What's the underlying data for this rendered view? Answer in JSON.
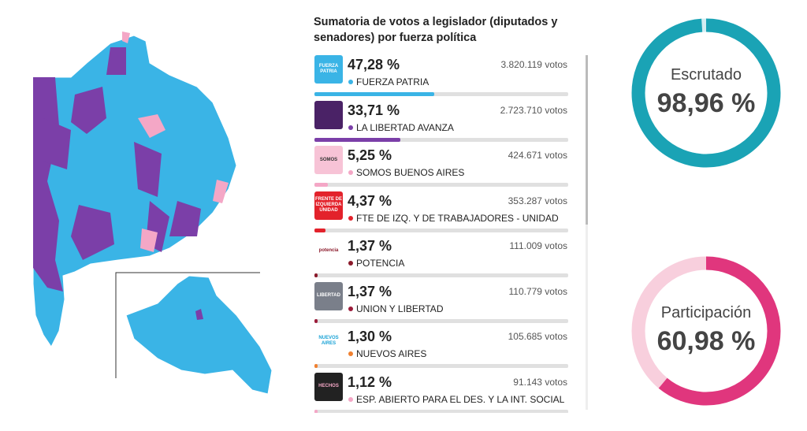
{
  "panel": {
    "title": "Sumatoria de votos a legislador (diputados y senadores) por fuerza política",
    "parties": [
      {
        "value": 47.28,
        "label": "47,28 %",
        "votes": "3.820.119 votos",
        "name": "FUERZA PATRIA",
        "logo_text": "FUERZA PATRIA",
        "color": "#3ab4e6",
        "logo_bg": "#3ab4e6",
        "logo_fg": "#fff"
      },
      {
        "value": 33.71,
        "label": "33,71 %",
        "votes": "2.723.710 votos",
        "name": "LA LIBERTAD AVANZA",
        "logo_text": "",
        "color": "#7b3fa8",
        "logo_bg": "#4a2266",
        "logo_fg": "#fff"
      },
      {
        "value": 5.25,
        "label": "5,25 %",
        "votes": "424.671 votos",
        "name": "SOMOS BUENOS AIRES",
        "logo_text": "SOMOS",
        "color": "#f4a7c6",
        "logo_bg": "#f7c3d6",
        "logo_fg": "#333"
      },
      {
        "value": 4.37,
        "label": "4,37 %",
        "votes": "353.287 votos",
        "name": "FTE DE IZQ. Y DE TRABAJADORES - UNIDAD",
        "logo_text": "FRENTE DE IZQUIERDA UNIDAD",
        "color": "#e3222b",
        "logo_bg": "#e3222b",
        "logo_fg": "#fff"
      },
      {
        "value": 1.37,
        "label": "1,37 %",
        "votes": "111.009 votos",
        "name": "POTENCIA",
        "logo_text": "potencia",
        "color": "#8b1a2b",
        "logo_bg": "#fff",
        "logo_fg": "#8b1a2b"
      },
      {
        "value": 1.37,
        "label": "1,37 %",
        "votes": "110.779 votos",
        "name": "UNION Y LIBERTAD",
        "logo_text": "LIBERTAD",
        "color": "#9b1c3a",
        "logo_bg": "#7a7f8a",
        "logo_fg": "#fff"
      },
      {
        "value": 1.3,
        "label": "1,30 %",
        "votes": "105.685 votos",
        "name": "NUEVOS AIRES",
        "logo_text": "NUEVOS AIRES",
        "color": "#f08030",
        "logo_bg": "#fff",
        "logo_fg": "#1aa3d6"
      },
      {
        "value": 1.12,
        "label": "1,12 %",
        "votes": "91.143 votos",
        "name": "ESP. ABIERTO PARA EL DES. Y LA INT. SOCIAL",
        "logo_text": "HECHOS",
        "color": "#f4a7c6",
        "logo_bg": "#222",
        "logo_fg": "#f4a7c6"
      }
    ]
  },
  "gauges": [
    {
      "title": "Escrutado",
      "value": 98.96,
      "label": "98,96 %",
      "color": "#1aa3b5",
      "track": "#d3eef2"
    },
    {
      "title": "Participación",
      "value": 60.98,
      "label": "60,98 %",
      "color": "#e0367d",
      "track": "#f8cfdd"
    }
  ]
}
